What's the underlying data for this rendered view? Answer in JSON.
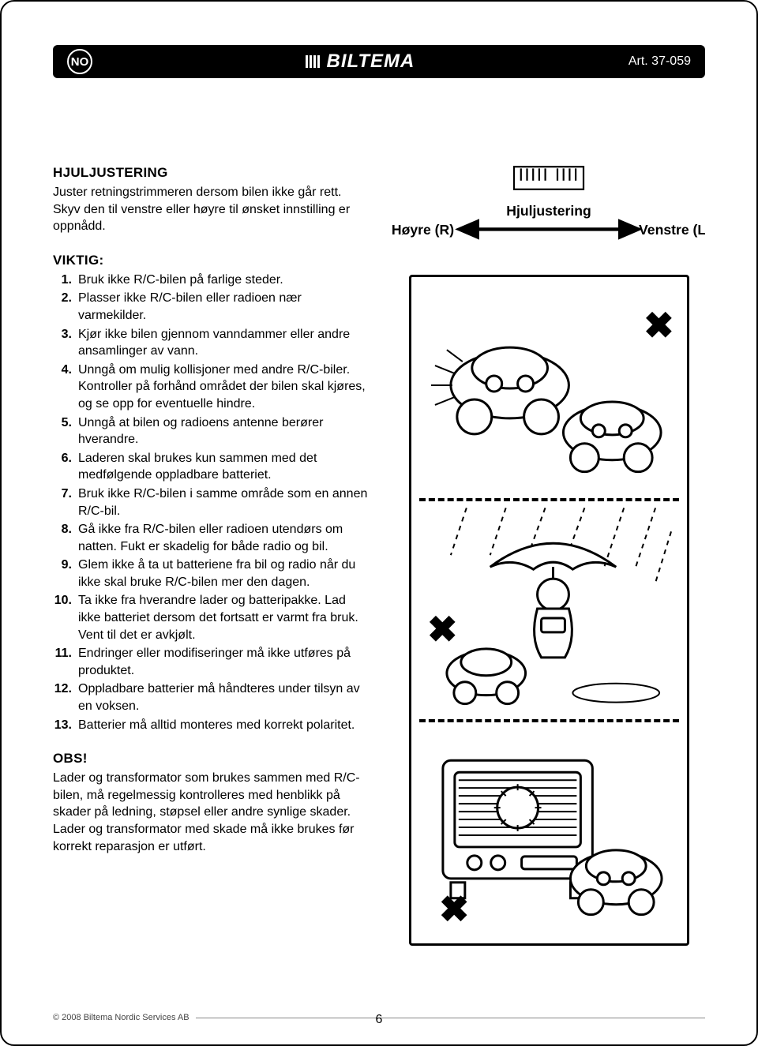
{
  "header": {
    "lang_code": "NO",
    "brand": "BILTEMA",
    "article": "Art. 37-059"
  },
  "section1": {
    "title": "HJULJUSTERING",
    "body": "Juster retningstrimmeren dersom bilen ikke går rett. Skyv den til venstre eller høyre til ønsket innstilling er oppnådd."
  },
  "viktig": {
    "title": "VIKTIG:",
    "items": [
      "Bruk ikke R/C-bilen på farlige steder.",
      "Plasser ikke R/C-bilen eller radioen nær varmekilder.",
      "Kjør ikke bilen gjennom vanndammer eller andre ansamlinger av vann.",
      "Unngå om mulig kollisjoner med andre R/C-biler. Kontroller på forhånd området der bilen skal kjøres, og se opp for eventuelle hindre.",
      "Unngå at bilen og radioens antenne berører hverandre.",
      "Laderen skal brukes kun sammen med det medfølgende oppladbare batteriet.",
      "Bruk ikke R/C-bilen i samme område som en annen R/C-bil.",
      "Gå ikke fra R/C-bilen eller radioen utendørs om natten. Fukt er skadelig for både radio og bil.",
      "Glem ikke å ta ut batteriene fra bil og radio når du ikke skal bruke R/C-bilen mer den dagen.",
      "Ta ikke fra hverandre lader og batteripakke. Lad ikke batteriet dersom det fortsatt er varmt fra bruk. Vent til det er avkjølt.",
      "Endringer eller modifiseringer må ikke utføres på produktet.",
      "Oppladbare batterier må håndteres under tilsyn av en voksen.",
      "Batterier må alltid monteres med korrekt polaritet."
    ]
  },
  "obs": {
    "title": "OBS!",
    "body": "Lader og transformator som brukes sammen med R/C-bilen, må regelmessig kontrolleres med henblikk på skader på ledning, støpsel eller andre synlige skader. Lader og transformator med skade må ikke brukes før korrekt reparasjon er utført."
  },
  "diagram": {
    "label_center": "Hjuljustering",
    "label_left": "Høyre (R)",
    "label_right": "Venstre (L)"
  },
  "footer": {
    "copyright": "© 2008 Biltema Nordic Services AB",
    "page_number": "6"
  },
  "colors": {
    "text": "#000000",
    "header_bg": "#000000",
    "header_fg": "#ffffff",
    "page_bg": "#ffffff",
    "footer_text": "#444444"
  }
}
